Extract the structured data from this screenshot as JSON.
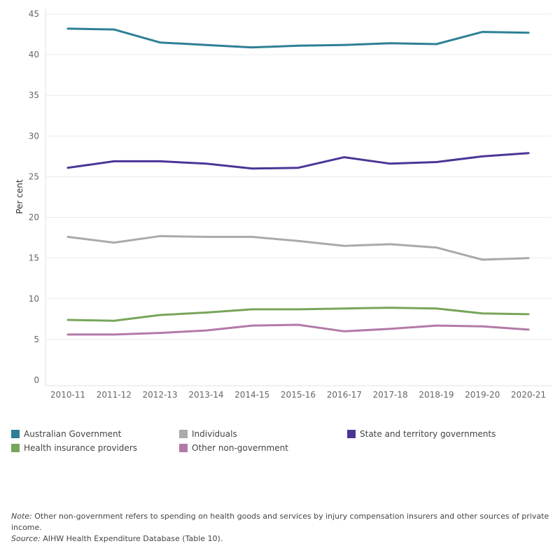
{
  "chart_data": {
    "type": "line",
    "ylabel": "Per cent",
    "xlabel": "",
    "ylim": [
      0,
      45
    ],
    "yticks": [
      0,
      5,
      10,
      15,
      20,
      25,
      30,
      35,
      40,
      45
    ],
    "grid": "horizontal",
    "legend_position": "bottom",
    "categories": [
      "2010-11",
      "2011-12",
      "2012-13",
      "2013-14",
      "2014-15",
      "2015-16",
      "2016-17",
      "2017-18",
      "2018-19",
      "2019-20",
      "2020-21"
    ],
    "series": [
      {
        "name": "Australian Government",
        "color": "#2e7f94",
        "values": [
          43.2,
          43.1,
          41.5,
          41.2,
          40.9,
          41.1,
          41.2,
          41.4,
          41.3,
          42.8,
          42.7
        ]
      },
      {
        "name": "State and territory governments",
        "color": "#4b3596",
        "values": [
          26.1,
          26.9,
          26.9,
          26.6,
          26.0,
          26.1,
          27.4,
          26.6,
          26.8,
          27.5,
          27.9
        ]
      },
      {
        "name": "Individuals",
        "color": "#a8aaac",
        "values": [
          17.6,
          16.9,
          17.7,
          17.6,
          17.6,
          17.1,
          16.5,
          16.7,
          16.3,
          14.8,
          15.0
        ]
      },
      {
        "name": "Health insurance providers",
        "color": "#77a55a",
        "values": [
          7.4,
          7.3,
          8.0,
          8.3,
          8.7,
          8.7,
          8.8,
          8.9,
          8.8,
          8.2,
          8.1
        ]
      },
      {
        "name": "Other non-government",
        "color": "#b27aa8",
        "values": [
          5.6,
          5.6,
          5.8,
          6.1,
          6.7,
          6.8,
          6.0,
          6.3,
          6.7,
          6.6,
          6.2
        ]
      }
    ]
  },
  "legend": [
    {
      "label": "Australian Government",
      "color": "#2e7f94"
    },
    {
      "label": "Individuals",
      "color": "#a8aaac"
    },
    {
      "label": "State and territory governments",
      "color": "#4b3596"
    },
    {
      "label": "Health insurance providers",
      "color": "#77a55a"
    },
    {
      "label": "Other non-government",
      "color": "#b27aa8"
    }
  ],
  "footnote": {
    "note_label": "Note:",
    "note_text": " Other non-government refers to spending on health goods and services by injury compensation insurers and other sources of private income.",
    "source_label": "Source:",
    "source_text": " AIHW Health Expenditure Database (Table 10)."
  }
}
